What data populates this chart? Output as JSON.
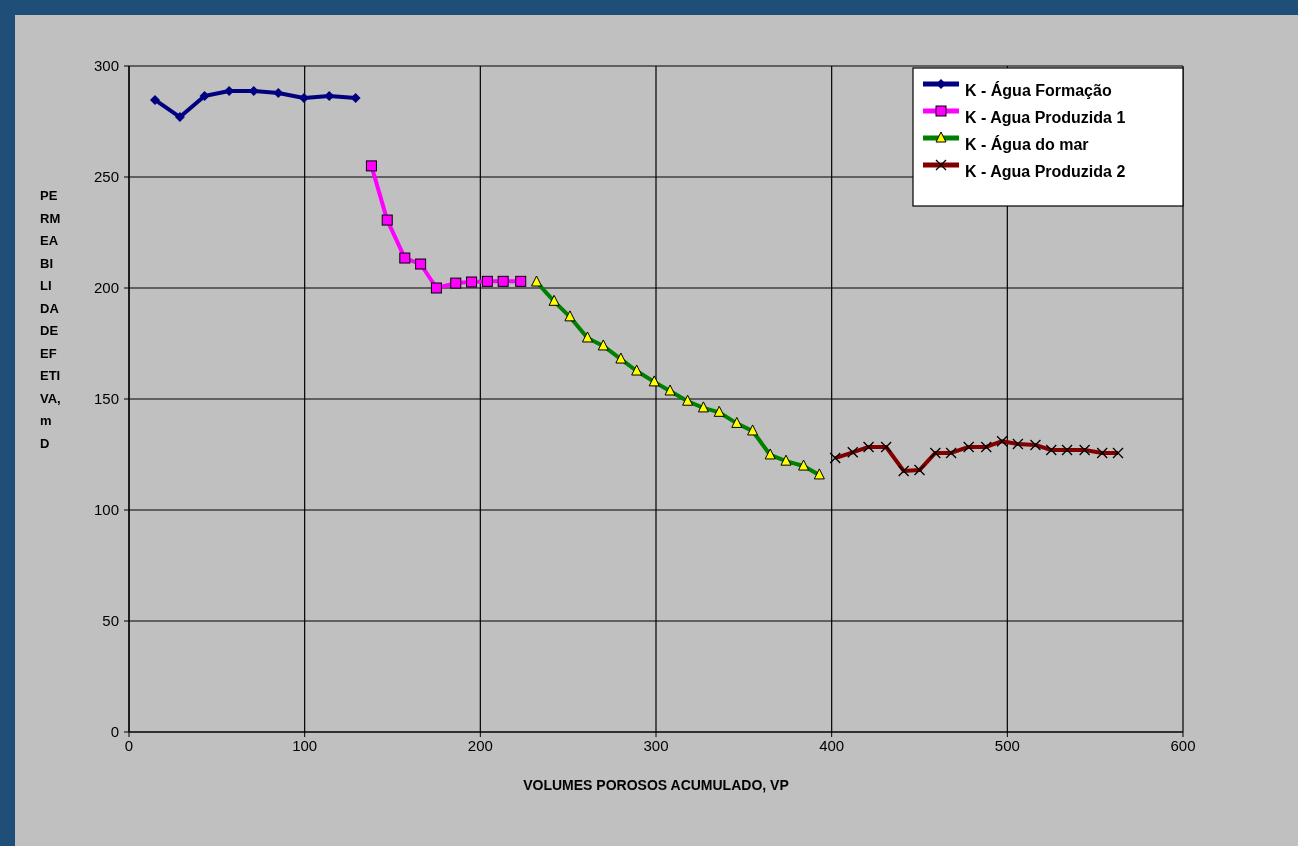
{
  "chart_data": {
    "type": "line",
    "xlabel": "VOLUMES POROSOS ACUMULADO, VP",
    "ylabel": "PERMEABILIDADE EFETIVA, mD",
    "xlim": [
      0,
      600
    ],
    "xticks": [
      0,
      100,
      200,
      300,
      400,
      500,
      600
    ],
    "ylim": [
      0,
      300
    ],
    "yticks": [
      0,
      50,
      100,
      150,
      200,
      250,
      300
    ],
    "grid": true,
    "legend": "top right",
    "series": [
      {
        "name": "K - Água Formação",
        "color": "#000080",
        "marker": "diamond",
        "x": [
          14.8,
          29,
          43,
          57,
          71,
          85,
          99.6,
          114,
          129
        ],
        "values": [
          284.7,
          277,
          286.5,
          288.7,
          288.7,
          287.8,
          285.6,
          286.5,
          285.6
        ]
      },
      {
        "name": "K - Agua Produzida 1",
        "color": "#ff00ff",
        "marker": "square",
        "x": [
          138,
          147,
          157,
          166,
          175,
          186,
          195,
          204,
          213,
          223
        ],
        "values": [
          255,
          230.6,
          213.5,
          210.8,
          200,
          202.2,
          202.7,
          203,
          203,
          203
        ]
      },
      {
        "name": "K - Água  do mar",
        "color": "#008000",
        "marker": "triangle",
        "x": [
          232,
          242,
          251,
          261,
          270,
          280,
          289,
          299,
          308,
          318,
          327,
          336,
          346,
          355,
          365,
          374,
          384,
          393
        ],
        "values": [
          202.7,
          194,
          187,
          177.5,
          173.9,
          168,
          162.6,
          157.7,
          153.6,
          149,
          146,
          144,
          139,
          135.6,
          124.8,
          122,
          119.8,
          115.8
        ]
      },
      {
        "name": "K - Agua Produzida 2",
        "color": "#800000",
        "marker": "cross",
        "x": [
          402,
          412,
          421,
          431,
          441,
          450,
          459,
          468,
          478,
          488,
          497,
          506,
          516,
          525,
          534,
          544,
          554,
          563
        ],
        "values": [
          123.4,
          126,
          128.4,
          128.4,
          117.6,
          118,
          125.7,
          125.7,
          128.4,
          128.4,
          131,
          129.7,
          129.3,
          127,
          127,
          127,
          125.7,
          125.7
        ]
      }
    ]
  }
}
